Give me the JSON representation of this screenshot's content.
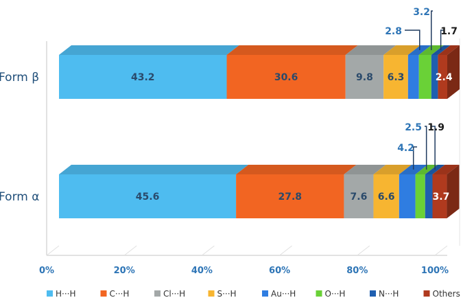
{
  "chart_data": {
    "type": "bar",
    "orientation": "horizontal",
    "stacked": "percent",
    "categories": [
      "Form β",
      "Form α"
    ],
    "series": [
      {
        "name": "H···H",
        "values": [
          43.2,
          45.6
        ],
        "color": "#4ebcf0"
      },
      {
        "name": "C···H",
        "values": [
          30.6,
          27.8
        ],
        "color": "#f26522"
      },
      {
        "name": "Cl···H",
        "values": [
          9.8,
          7.6
        ],
        "color": "#a3a8a8"
      },
      {
        "name": "S···H",
        "values": [
          6.3,
          6.6
        ],
        "color": "#f7b531"
      },
      {
        "name": "Au···H",
        "values": [
          2.8,
          4.2
        ],
        "color": "#2f7de1"
      },
      {
        "name": "O···H",
        "values": [
          3.2,
          2.5
        ],
        "color": "#6ad137"
      },
      {
        "name": "N···H",
        "values": [
          1.7,
          1.9
        ],
        "color": "#1f5fb0"
      },
      {
        "name": "Others",
        "values": [
          2.4,
          3.7
        ],
        "color": "#b03a1e"
      }
    ],
    "data_labels": [
      [
        "43.2",
        "30.6",
        "9.8",
        "6.3",
        "2.8",
        "3.2",
        "1.7",
        "2.4"
      ],
      [
        "45.6",
        "27.8",
        "7.6",
        "6.6",
        "4.2",
        "2.5",
        "1.9",
        "3.7"
      ]
    ],
    "x_ticks": [
      "0%",
      "20%",
      "40%",
      "60%",
      "80%",
      "100%"
    ],
    "xlim": [
      0,
      100
    ],
    "legend_position": "bottom",
    "title": "",
    "xlabel": "",
    "ylabel": ""
  }
}
